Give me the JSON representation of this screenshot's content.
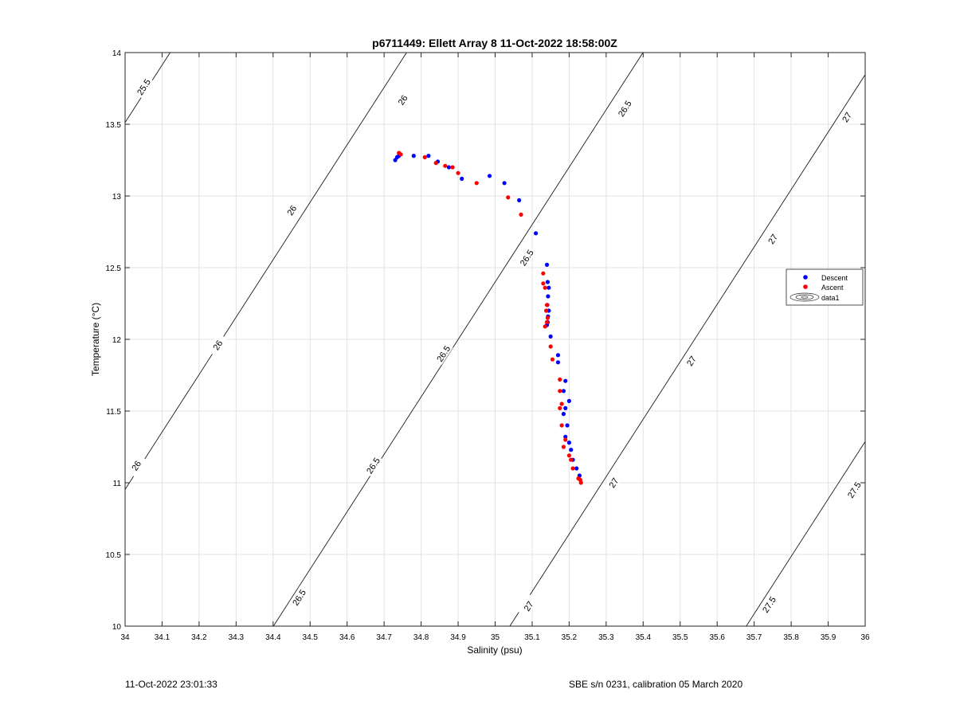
{
  "chart_data": {
    "type": "scatter",
    "title": "p6711449: Ellett Array 8 11-Oct-2022 18:58:00Z",
    "xlabel": "Salinity (psu)",
    "ylabel": "Temperature (°C)",
    "xlim": [
      34,
      36
    ],
    "ylim": [
      10,
      14
    ],
    "grid": true,
    "x_ticks": [
      34,
      34.1,
      34.2,
      34.3,
      34.4,
      34.5,
      34.6,
      34.7,
      34.8,
      34.9,
      35,
      35.1,
      35.2,
      35.3,
      35.4,
      35.5,
      35.6,
      35.7,
      35.8,
      35.9,
      36
    ],
    "x_tick_labels": [
      "34",
      "34.1",
      "34.2",
      "34.3",
      "34.4",
      "34.5",
      "34.6",
      "34.7",
      "34.8",
      "34.9",
      "35",
      "35.1",
      "35.2",
      "35.3",
      "35.4",
      "35.5",
      "35.6",
      "35.7",
      "35.8",
      "35.9",
      "36"
    ],
    "y_ticks": [
      10,
      10.5,
      11,
      11.5,
      12,
      12.5,
      13,
      13.5,
      14
    ],
    "y_tick_labels": [
      "10",
      "10.5",
      "11",
      "11.5",
      "12",
      "12.5",
      "13",
      "13.5",
      "14"
    ],
    "legend_position": "right",
    "series": [
      {
        "name": "Descent",
        "color": "#0000ff",
        "x": [
          34.73,
          34.735,
          34.74,
          34.78,
          34.82,
          34.845,
          34.875,
          34.91,
          34.985,
          35.025,
          35.065,
          35.11,
          35.14,
          35.142,
          35.145,
          35.143,
          35.141,
          35.145,
          35.142,
          35.143,
          35.14,
          35.15,
          35.17,
          35.17,
          35.19,
          35.185,
          35.2,
          35.19,
          35.185,
          35.195,
          35.19,
          35.2,
          35.205,
          35.21,
          35.22,
          35.228
        ],
        "y": [
          13.25,
          13.27,
          13.28,
          13.28,
          13.28,
          13.24,
          13.2,
          13.12,
          13.14,
          13.09,
          12.97,
          12.74,
          12.52,
          12.4,
          12.36,
          12.3,
          12.24,
          12.2,
          12.12,
          12.16,
          12.1,
          12.02,
          11.89,
          11.84,
          11.71,
          11.64,
          11.57,
          11.52,
          11.48,
          11.4,
          11.32,
          11.28,
          11.23,
          11.16,
          11.1,
          11.05
        ]
      },
      {
        "name": "Ascent",
        "color": "#ff0000",
        "x": [
          34.74,
          34.745,
          34.81,
          34.84,
          34.865,
          34.885,
          34.9,
          34.95,
          35.035,
          35.07,
          35.13,
          35.13,
          35.135,
          35.14,
          35.138,
          35.142,
          35.135,
          35.14,
          35.15,
          35.155,
          35.175,
          35.175,
          35.18,
          35.175,
          35.18,
          35.19,
          35.185,
          35.2,
          35.205,
          35.21,
          35.225,
          35.23,
          35.232
        ],
        "y": [
          13.3,
          13.29,
          13.27,
          13.23,
          13.21,
          13.2,
          13.16,
          13.09,
          12.99,
          12.87,
          12.46,
          12.39,
          12.36,
          12.24,
          12.2,
          12.15,
          12.09,
          12.12,
          11.95,
          11.86,
          11.72,
          11.64,
          11.55,
          11.52,
          11.4,
          11.3,
          11.25,
          11.19,
          11.16,
          11.1,
          11.03,
          11.02,
          11.0
        ]
      }
    ],
    "contour_levels": [
      25.5,
      26,
      26.5,
      27,
      27.5
    ],
    "contour_series_name": "data1",
    "contour_labels": [
      {
        "text": "25.5",
        "level": 25.5,
        "x": 34.05,
        "y": 13.76
      },
      {
        "text": "26",
        "level": 26,
        "x": 34.75,
        "y": 13.67
      },
      {
        "text": "26",
        "level": 26,
        "x": 34.45,
        "y": 12.9
      },
      {
        "text": "26",
        "level": 26,
        "x": 34.25,
        "y": 11.96
      },
      {
        "text": "26",
        "level": 26,
        "x": 34.03,
        "y": 11.12
      },
      {
        "text": "26.5",
        "level": 26.5,
        "x": 35.35,
        "y": 13.61
      },
      {
        "text": "26.5",
        "level": 26.5,
        "x": 35.085,
        "y": 12.57
      },
      {
        "text": "26.5",
        "level": 26.5,
        "x": 34.86,
        "y": 11.9
      },
      {
        "text": "26.5",
        "level": 26.5,
        "x": 34.67,
        "y": 11.12
      },
      {
        "text": "26.5",
        "level": 26.5,
        "x": 34.47,
        "y": 10.2
      },
      {
        "text": "27",
        "level": 27,
        "x": 35.95,
        "y": 13.55
      },
      {
        "text": "27",
        "level": 27,
        "x": 35.75,
        "y": 12.7
      },
      {
        "text": "27",
        "level": 27,
        "x": 35.53,
        "y": 11.85
      },
      {
        "text": "27",
        "level": 27,
        "x": 35.32,
        "y": 11.0
      },
      {
        "text": "27",
        "level": 27,
        "x": 35.09,
        "y": 10.14
      },
      {
        "text": "27.5",
        "level": 27.5,
        "x": 35.97,
        "y": 10.95
      },
      {
        "text": "27.5",
        "level": 27.5,
        "x": 35.74,
        "y": 10.15
      }
    ]
  },
  "footer": {
    "left_timestamp": "11-Oct-2022 23:01:33",
    "right_info": "SBE s/n 0231, calibration 05 March 2020"
  }
}
